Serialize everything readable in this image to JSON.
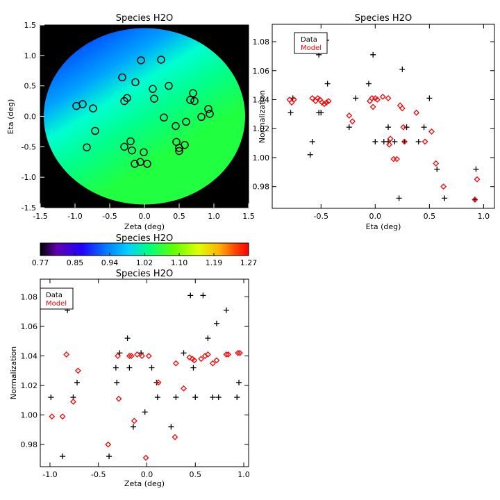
{
  "chart_data": [
    {
      "id": "map",
      "type": "heatmap",
      "title": "Species H2O",
      "xlabel": "Zeta (deg)",
      "ylabel": "Eta (deg)",
      "xlim": [
        -1.5,
        1.5
      ],
      "ylim": [
        -1.5,
        1.5
      ],
      "xticks": [
        "-1.5",
        "-1.0",
        "-0.5",
        "0.0",
        "0.5",
        "1.0",
        "1.5"
      ],
      "yticks": [
        "-1.5",
        "-1.0",
        "-0.5",
        "0.0",
        "0.5",
        "1.0",
        "1.5"
      ],
      "field_circle_radius_deg": 1.45,
      "background_color": "#000000",
      "gradient_colors": [
        "#0040ff",
        "#00a0ff",
        "#00ffd0",
        "#00ff90",
        "#20ff40"
      ],
      "marker": "open-circle",
      "marker_color": "#000000",
      "points": [
        {
          "x": -0.25,
          "y": 0.3
        },
        {
          "x": -0.05,
          "y": 0.92
        },
        {
          "x": 0.24,
          "y": 0.93
        },
        {
          "x": -0.32,
          "y": 0.64
        },
        {
          "x": -0.13,
          "y": 0.56
        },
        {
          "x": 0.35,
          "y": 0.5
        },
        {
          "x": 0.12,
          "y": 0.45
        },
        {
          "x": 0.7,
          "y": 0.38
        },
        {
          "x": 0.66,
          "y": 0.27
        },
        {
          "x": 0.72,
          "y": 0.25
        },
        {
          "x": 0.14,
          "y": 0.29
        },
        {
          "x": -0.29,
          "y": 0.25
        },
        {
          "x": -0.98,
          "y": 0.17
        },
        {
          "x": -0.89,
          "y": 0.2
        },
        {
          "x": -0.74,
          "y": 0.13
        },
        {
          "x": 0.92,
          "y": 0.12
        },
        {
          "x": 0.94,
          "y": 0.04
        },
        {
          "x": 0.82,
          "y": -0.01
        },
        {
          "x": 0.28,
          "y": -0.02
        },
        {
          "x": 0.6,
          "y": -0.09
        },
        {
          "x": 0.45,
          "y": -0.16
        },
        {
          "x": -0.71,
          "y": -0.24
        },
        {
          "x": -0.83,
          "y": -0.51
        },
        {
          "x": -0.29,
          "y": -0.5
        },
        {
          "x": -0.2,
          "y": -0.41
        },
        {
          "x": -0.18,
          "y": -0.56
        },
        {
          "x": 0.46,
          "y": -0.42
        },
        {
          "x": 0.5,
          "y": -0.52
        },
        {
          "x": 0.58,
          "y": -0.47
        },
        {
          "x": 0.5,
          "y": -0.57
        },
        {
          "x": -0.01,
          "y": -0.59
        },
        {
          "x": -0.06,
          "y": -0.75
        },
        {
          "x": -0.14,
          "y": -0.78
        },
        {
          "x": 0.04,
          "y": -0.78
        }
      ]
    },
    {
      "id": "colorbar",
      "type": "colorbar",
      "title": "Species H2O",
      "range": [
        0.77,
        1.27
      ],
      "ticks": [
        "0.77",
        "0.85",
        "0.94",
        "1.02",
        "1.10",
        "1.19",
        "1.27"
      ],
      "colors": [
        "#000000",
        "#6000b0",
        "#2000ff",
        "#0080ff",
        "#00d0ff",
        "#00ff80",
        "#60ff00",
        "#e0ff00",
        "#ffb000",
        "#ff4000",
        "#ff0000"
      ]
    },
    {
      "id": "eta",
      "type": "scatter",
      "title": "Species H2O",
      "xlabel": "Eta (deg)",
      "ylabel": "Normalization",
      "xlim": [
        -0.95,
        1.1
      ],
      "ylim": [
        0.965,
        1.092
      ],
      "xticks": [
        -0.5,
        0.0,
        0.5,
        1.0
      ],
      "xtick_labels": [
        "-0.5",
        "0.0",
        "0.5",
        "1.0"
      ],
      "yticks": [
        0.98,
        1.0,
        1.02,
        1.04,
        1.06,
        1.08
      ],
      "ytick_labels": [
        "0.98",
        "1.00",
        "1.02",
        "1.04",
        "1.06",
        "1.08"
      ],
      "legend": {
        "position": "top-left",
        "entries": [
          {
            "label": "Data",
            "color": "#000000"
          },
          {
            "label": "Model",
            "color": "#ff0000"
          }
        ]
      },
      "series": [
        {
          "name": "Data",
          "marker": "plus",
          "color": "#000000",
          "points": [
            {
              "x": -0.78,
              "y": 1.031
            },
            {
              "x": -0.76,
              "y": 1.041
            },
            {
              "x": -0.58,
              "y": 1.011
            },
            {
              "x": -0.6,
              "y": 1.002
            },
            {
              "x": -0.52,
              "y": 1.071
            },
            {
              "x": -0.48,
              "y": 1.081
            },
            {
              "x": -0.45,
              "y": 1.081
            },
            {
              "x": -0.44,
              "y": 1.051
            },
            {
              "x": -0.52,
              "y": 1.031
            },
            {
              "x": -0.5,
              "y": 1.031
            },
            {
              "x": -0.18,
              "y": 1.041
            },
            {
              "x": -0.24,
              "y": 1.021
            },
            {
              "x": -0.06,
              "y": 1.051
            },
            {
              "x": -0.02,
              "y": 1.071
            },
            {
              "x": 0.0,
              "y": 1.011
            },
            {
              "x": 0.08,
              "y": 1.011
            },
            {
              "x": 0.12,
              "y": 1.021
            },
            {
              "x": 0.12,
              "y": 1.011
            },
            {
              "x": 0.18,
              "y": 1.011
            },
            {
              "x": 0.22,
              "y": 0.972
            },
            {
              "x": 0.25,
              "y": 1.061
            },
            {
              "x": 0.27,
              "y": 1.011
            },
            {
              "x": 0.29,
              "y": 1.021
            },
            {
              "x": 0.4,
              "y": 1.011
            },
            {
              "x": 0.45,
              "y": 1.021
            },
            {
              "x": 0.5,
              "y": 1.041
            },
            {
              "x": 0.57,
              "y": 0.992
            },
            {
              "x": 0.64,
              "y": 0.972
            },
            {
              "x": 0.93,
              "y": 0.992
            },
            {
              "x": 0.92,
              "y": 0.971
            }
          ]
        },
        {
          "name": "Model",
          "marker": "diamond",
          "color": "#ff0000",
          "points": [
            {
              "x": -0.79,
              "y": 1.04
            },
            {
              "x": -0.77,
              "y": 1.038
            },
            {
              "x": -0.75,
              "y": 1.04
            },
            {
              "x": -0.58,
              "y": 1.041
            },
            {
              "x": -0.55,
              "y": 1.039
            },
            {
              "x": -0.53,
              "y": 1.041
            },
            {
              "x": -0.51,
              "y": 1.04
            },
            {
              "x": -0.49,
              "y": 1.038
            },
            {
              "x": -0.47,
              "y": 1.037
            },
            {
              "x": -0.45,
              "y": 1.038
            },
            {
              "x": -0.43,
              "y": 1.039
            },
            {
              "x": -0.24,
              "y": 1.029
            },
            {
              "x": -0.21,
              "y": 1.025
            },
            {
              "x": -0.05,
              "y": 1.039
            },
            {
              "x": -0.03,
              "y": 1.041
            },
            {
              "x": -0.02,
              "y": 1.035
            },
            {
              "x": 0.0,
              "y": 1.041
            },
            {
              "x": 0.02,
              "y": 1.04
            },
            {
              "x": 0.07,
              "y": 1.042
            },
            {
              "x": 0.12,
              "y": 1.041
            },
            {
              "x": 0.13,
              "y": 1.009
            },
            {
              "x": 0.14,
              "y": 1.013
            },
            {
              "x": 0.17,
              "y": 0.999
            },
            {
              "x": 0.2,
              "y": 0.999
            },
            {
              "x": 0.23,
              "y": 1.036
            },
            {
              "x": 0.25,
              "y": 1.034
            },
            {
              "x": 0.26,
              "y": 1.021
            },
            {
              "x": 0.27,
              "y": 1.011
            },
            {
              "x": 0.38,
              "y": 1.031
            },
            {
              "x": 0.46,
              "y": 1.011
            },
            {
              "x": 0.52,
              "y": 1.018
            },
            {
              "x": 0.56,
              "y": 0.996
            },
            {
              "x": 0.63,
              "y": 0.98
            },
            {
              "x": 0.92,
              "y": 0.971
            },
            {
              "x": 0.94,
              "y": 0.985
            }
          ]
        }
      ]
    },
    {
      "id": "zeta",
      "type": "scatter",
      "title": "Species H2O",
      "xlabel": "Zeta (deg)",
      "ylabel": "Normalization",
      "xlim": [
        -1.1,
        1.05
      ],
      "ylim": [
        0.965,
        1.092
      ],
      "xticks": [
        -1.0,
        -0.5,
        0.0,
        0.5,
        1.0
      ],
      "xtick_labels": [
        "-1.0",
        "-0.5",
        "0.0",
        "0.5",
        "1.0"
      ],
      "yticks": [
        0.98,
        1.0,
        1.02,
        1.04,
        1.06,
        1.08
      ],
      "ytick_labels": [
        "0.98",
        "1.00",
        "1.02",
        "1.04",
        "1.06",
        "1.08"
      ],
      "legend": {
        "position": "top-left",
        "entries": [
          {
            "label": "Data",
            "color": "#000000"
          },
          {
            "label": "Model",
            "color": "#ff0000"
          }
        ]
      },
      "series": [
        {
          "name": "Data",
          "marker": "plus",
          "color": "#000000",
          "points": [
            {
              "x": -0.99,
              "y": 1.012
            },
            {
              "x": -0.87,
              "y": 0.972
            },
            {
              "x": -0.82,
              "y": 1.071
            },
            {
              "x": -0.76,
              "y": 1.012
            },
            {
              "x": -0.72,
              "y": 1.022
            },
            {
              "x": -0.39,
              "y": 0.972
            },
            {
              "x": -0.32,
              "y": 1.032
            },
            {
              "x": -0.31,
              "y": 1.022
            },
            {
              "x": -0.28,
              "y": 1.042
            },
            {
              "x": -0.2,
              "y": 1.052
            },
            {
              "x": -0.18,
              "y": 1.032
            },
            {
              "x": -0.14,
              "y": 0.992
            },
            {
              "x": -0.06,
              "y": 1.042
            },
            {
              "x": -0.02,
              "y": 1.002
            },
            {
              "x": 0.05,
              "y": 1.032
            },
            {
              "x": 0.1,
              "y": 1.022
            },
            {
              "x": 0.11,
              "y": 1.012
            },
            {
              "x": 0.25,
              "y": 0.992
            },
            {
              "x": 0.3,
              "y": 1.012
            },
            {
              "x": 0.38,
              "y": 1.042
            },
            {
              "x": 0.45,
              "y": 1.081
            },
            {
              "x": 0.48,
              "y": 1.032
            },
            {
              "x": 0.5,
              "y": 1.012
            },
            {
              "x": 0.58,
              "y": 1.081
            },
            {
              "x": 0.63,
              "y": 1.052
            },
            {
              "x": 0.68,
              "y": 1.012
            },
            {
              "x": 0.72,
              "y": 1.062
            },
            {
              "x": 0.74,
              "y": 1.012
            },
            {
              "x": 0.82,
              "y": 1.071
            },
            {
              "x": 0.93,
              "y": 1.012
            },
            {
              "x": 0.95,
              "y": 1.022
            }
          ]
        },
        {
          "name": "Model",
          "marker": "diamond",
          "color": "#ff0000",
          "points": [
            {
              "x": -0.98,
              "y": 0.999
            },
            {
              "x": -0.87,
              "y": 0.999
            },
            {
              "x": -0.83,
              "y": 1.041
            },
            {
              "x": -0.76,
              "y": 1.009
            },
            {
              "x": -0.71,
              "y": 1.03
            },
            {
              "x": -0.4,
              "y": 0.98
            },
            {
              "x": -0.3,
              "y": 1.04
            },
            {
              "x": -0.29,
              "y": 1.011
            },
            {
              "x": -0.18,
              "y": 1.04
            },
            {
              "x": -0.16,
              "y": 1.04
            },
            {
              "x": -0.13,
              "y": 0.996
            },
            {
              "x": -0.1,
              "y": 1.041
            },
            {
              "x": -0.05,
              "y": 1.04
            },
            {
              "x": -0.01,
              "y": 0.971
            },
            {
              "x": 0.02,
              "y": 1.04
            },
            {
              "x": 0.12,
              "y": 1.022
            },
            {
              "x": 0.29,
              "y": 0.985
            },
            {
              "x": 0.3,
              "y": 1.035
            },
            {
              "x": 0.38,
              "y": 1.018
            },
            {
              "x": 0.44,
              "y": 1.039
            },
            {
              "x": 0.47,
              "y": 1.038
            },
            {
              "x": 0.49,
              "y": 1.037
            },
            {
              "x": 0.56,
              "y": 1.038
            },
            {
              "x": 0.6,
              "y": 1.04
            },
            {
              "x": 0.63,
              "y": 1.041
            },
            {
              "x": 0.68,
              "y": 1.035
            },
            {
              "x": 0.72,
              "y": 1.037
            },
            {
              "x": 0.82,
              "y": 1.041
            },
            {
              "x": 0.84,
              "y": 1.041
            },
            {
              "x": 0.94,
              "y": 1.042
            },
            {
              "x": 0.96,
              "y": 1.042
            }
          ]
        }
      ]
    }
  ]
}
